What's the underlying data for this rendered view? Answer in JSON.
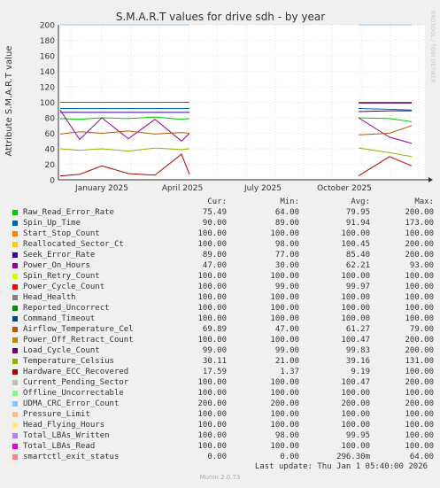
{
  "chart_data": {
    "type": "line",
    "title": "S.M.A.R.T values for drive sdh - by year",
    "ylabel": "Attribute S.M.A.R.T value",
    "xlabel": "",
    "ylim": [
      0,
      200
    ],
    "yticks": [
      0,
      20,
      40,
      60,
      80,
      100,
      120,
      140,
      160,
      180,
      200
    ],
    "xtick_labels": [
      "January 2025",
      "April 2025",
      "July 2025",
      "October 2025"
    ],
    "grid": true,
    "legend_placement": "bottom",
    "series": [
      {
        "name": "Raw_Read_Error_Rate",
        "color": "#00cc00",
        "cur": "75.49",
        "min": "64.00",
        "avg": "79.95",
        "max": "200.00",
        "values": [
          79,
          78,
          80,
          79,
          81,
          78,
          79,
          null,
          null,
          75,
          null,
          80,
          79,
          75
        ]
      },
      {
        "name": "Spin_Up_Time",
        "color": "#0066b3",
        "cur": "90.00",
        "min": "89.00",
        "avg": "91.94",
        "max": "173.00",
        "values": [
          92,
          92,
          92,
          92,
          92,
          92,
          92,
          null,
          null,
          90,
          null,
          92,
          91,
          90
        ]
      },
      {
        "name": "Start_Stop_Count",
        "color": "#ff8000",
        "cur": "100.00",
        "min": "100.00",
        "avg": "100.00",
        "max": "100.00",
        "values": [
          100,
          100,
          100,
          100,
          100,
          100,
          100,
          null,
          null,
          100,
          null,
          100,
          100,
          100
        ]
      },
      {
        "name": "Reallocated_Sector_Ct",
        "color": "#ffcc00",
        "cur": "100.00",
        "min": "98.00",
        "avg": "100.45",
        "max": "200.00",
        "values": [
          100,
          100,
          100,
          100,
          100,
          100,
          100,
          null,
          null,
          100,
          null,
          100,
          100,
          100
        ]
      },
      {
        "name": "Seek_Error_Rate",
        "color": "#330099",
        "cur": "89.00",
        "min": "77.00",
        "avg": "85.40",
        "max": "200.00",
        "values": [
          87,
          87,
          87,
          87,
          87,
          87,
          87,
          null,
          null,
          88,
          null,
          88,
          89,
          89
        ]
      },
      {
        "name": "Power_On_Hours",
        "color": "#990099",
        "cur": "47.00",
        "min": "30.00",
        "avg": "62.21",
        "max": "93.00",
        "values": [
          90,
          52,
          80,
          53,
          78,
          50,
          60,
          null,
          null,
          30,
          null,
          80,
          55,
          47
        ]
      },
      {
        "name": "Spin_Retry_Count",
        "color": "#ccff00",
        "cur": "100.00",
        "min": "100.00",
        "avg": "100.00",
        "max": "100.00",
        "values": [
          100,
          100,
          100,
          100,
          100,
          100,
          100,
          null,
          null,
          100,
          null,
          100,
          100,
          100
        ]
      },
      {
        "name": "Power_Cycle_Count",
        "color": "#ff0000",
        "cur": "100.00",
        "min": "99.00",
        "avg": "99.97",
        "max": "100.00",
        "values": [
          100,
          100,
          100,
          100,
          100,
          100,
          100,
          null,
          null,
          100,
          null,
          100,
          100,
          100
        ]
      },
      {
        "name": "Head_Health",
        "color": "#808080",
        "cur": "100.00",
        "min": "100.00",
        "avg": "100.00",
        "max": "100.00",
        "values": [
          100,
          100,
          100,
          100,
          100,
          100,
          100,
          null,
          null,
          100,
          null,
          100,
          100,
          100
        ]
      },
      {
        "name": "Reported_Uncorrect",
        "color": "#008f00",
        "cur": "100.00",
        "min": "100.00",
        "avg": "100.00",
        "max": "100.00",
        "values": [
          100,
          100,
          100,
          100,
          100,
          100,
          100,
          null,
          null,
          100,
          null,
          100,
          100,
          100
        ]
      },
      {
        "name": "Command_Timeout",
        "color": "#00487d",
        "cur": "100.00",
        "min": "100.00",
        "avg": "100.00",
        "max": "100.00",
        "values": [
          100,
          100,
          100,
          100,
          100,
          100,
          100,
          null,
          null,
          100,
          null,
          100,
          100,
          100
        ]
      },
      {
        "name": "Airflow_Temperature_Cel",
        "color": "#b35a00",
        "cur": "69.89",
        "min": "47.00",
        "avg": "61.27",
        "max": "79.00",
        "values": [
          59,
          62,
          60,
          63,
          59,
          61,
          60,
          null,
          null,
          55,
          null,
          58,
          60,
          70
        ]
      },
      {
        "name": "Power_Off_Retract_Count",
        "color": "#b38f00",
        "cur": "100.00",
        "min": "100.00",
        "avg": "100.47",
        "max": "200.00",
        "values": [
          100,
          100,
          100,
          100,
          100,
          100,
          100,
          null,
          null,
          100,
          null,
          100,
          100,
          100
        ]
      },
      {
        "name": "Load_Cycle_Count",
        "color": "#6b006b",
        "cur": "99.00",
        "min": "99.00",
        "avg": "99.83",
        "max": "200.00",
        "values": [
          100,
          100,
          100,
          100,
          100,
          100,
          100,
          null,
          null,
          99,
          null,
          99,
          99,
          99
        ]
      },
      {
        "name": "Temperature_Celsius",
        "color": "#8fb300",
        "cur": "30.11",
        "min": "21.00",
        "avg": "39.16",
        "max": "131.00",
        "values": [
          40,
          38,
          40,
          37,
          41,
          39,
          40,
          null,
          null,
          45,
          null,
          41,
          35,
          30
        ]
      },
      {
        "name": "Hardware_ECC_Recovered",
        "color": "#b30000",
        "cur": "17.59",
        "min": "1.37",
        "avg": "9.19",
        "max": "100.00",
        "values": [
          5,
          7,
          18,
          8,
          6,
          33,
          7,
          null,
          null,
          10,
          null,
          5,
          30,
          18
        ]
      },
      {
        "name": "Current_Pending_Sector",
        "color": "#bebebe",
        "cur": "100.00",
        "min": "100.00",
        "avg": "100.47",
        "max": "200.00",
        "values": [
          100,
          100,
          100,
          100,
          100,
          100,
          100,
          null,
          null,
          100,
          null,
          100,
          100,
          100
        ]
      },
      {
        "name": "Offline_Uncorrectable",
        "color": "#80ff80",
        "cur": "100.00",
        "min": "100.00",
        "avg": "100.00",
        "max": "100.00",
        "values": [
          100,
          100,
          100,
          100,
          100,
          100,
          100,
          null,
          null,
          100,
          null,
          100,
          100,
          100
        ]
      },
      {
        "name": "UDMA_CRC_Error_Count",
        "color": "#80c9ff",
        "cur": "200.00",
        "min": "200.00",
        "avg": "200.00",
        "max": "200.00",
        "values": [
          200,
          200,
          200,
          200,
          200,
          200,
          200,
          null,
          null,
          200,
          null,
          200,
          200,
          200
        ]
      },
      {
        "name": "Pressure_Limit",
        "color": "#ffc080",
        "cur": "100.00",
        "min": "100.00",
        "avg": "100.00",
        "max": "100.00",
        "values": [
          100,
          100,
          100,
          100,
          100,
          100,
          100,
          null,
          null,
          100,
          null,
          100,
          100,
          100
        ]
      },
      {
        "name": "Head_Flying_Hours",
        "color": "#ffe680",
        "cur": "100.00",
        "min": "100.00",
        "avg": "100.00",
        "max": "100.00",
        "values": [
          100,
          100,
          100,
          100,
          100,
          100,
          100,
          null,
          null,
          100,
          null,
          100,
          100,
          100
        ]
      },
      {
        "name": "Total_LBAs_Written",
        "color": "#aa80ff",
        "cur": "100.00",
        "min": "98.00",
        "avg": "99.95",
        "max": "100.00",
        "values": [
          100,
          100,
          100,
          100,
          100,
          100,
          100,
          null,
          null,
          100,
          null,
          100,
          100,
          100
        ]
      },
      {
        "name": "Total_LBAs_Read",
        "color": "#ee00cc",
        "cur": "100.00",
        "min": "100.00",
        "avg": "100.00",
        "max": "100.00",
        "values": [
          100,
          100,
          100,
          100,
          100,
          100,
          100,
          null,
          null,
          100,
          null,
          100,
          100,
          100
        ]
      },
      {
        "name": "smartctl_exit_status",
        "color": "#ff8080",
        "cur": "0.00",
        "min": "0.00",
        "avg": "296.30m",
        "max": "64.00",
        "values": [
          0,
          0,
          0,
          0,
          0,
          0,
          0,
          null,
          null,
          0,
          null,
          0,
          0,
          0
        ]
      }
    ]
  },
  "legend_headers": {
    "cur": "Cur:",
    "min": "Min:",
    "avg": "Avg:",
    "max": "Max:"
  },
  "last_update": "Last update: Thu Jan  1 05:40:00 2026",
  "side_label": "RRDTOOL / TOBI OETIKER",
  "footer": "Munin 2.0.73"
}
